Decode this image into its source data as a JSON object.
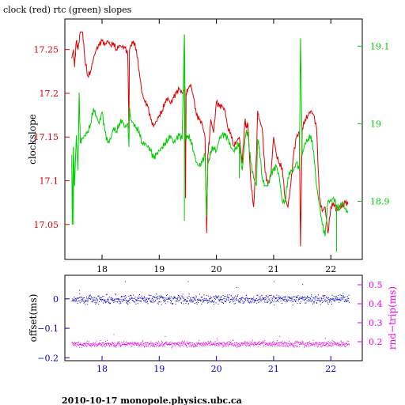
{
  "title": "clock (red) rtc (green) slopes",
  "footer": "2010-10-17  monopole.physics.ubc.ca",
  "colors": {
    "clock": "#dd0000",
    "rtc": "#00cc00",
    "offset": "#0000cc",
    "rndtrip": "#ee00ee",
    "frame": "#000000"
  },
  "chart_data": [
    {
      "type": "line",
      "title": "clock (red) rtc (green) slopes",
      "ylabel": "clockslope",
      "y2label": "",
      "xlim": [
        17.35,
        22.55
      ],
      "ylim": [
        17.01,
        17.285
      ],
      "y2lim": [
        18.825,
        19.135
      ],
      "x_ticks": [
        18,
        19,
        20,
        21,
        22
      ],
      "x_tick_labels": [
        "18",
        "19",
        "20",
        "21",
        "22"
      ],
      "y_ticks": [
        17.05,
        17.1,
        17.15,
        17.2,
        17.25
      ],
      "y_tick_labels": [
        "17.05",
        "17.1",
        "17.15",
        "17.2",
        "17.25"
      ],
      "y2_ticks": [
        18.9,
        19.0,
        19.1
      ],
      "y2_tick_labels": [
        "18.9",
        "19",
        "19.1"
      ],
      "series": [
        {
          "axis": "left",
          "x": [
            17.47,
            17.5,
            17.52,
            17.55,
            17.58,
            17.62,
            17.66,
            17.7,
            17.75,
            17.8,
            17.85,
            17.9,
            17.95,
            18.0,
            18.05,
            18.1,
            18.15,
            18.2,
            18.25,
            18.3,
            18.35,
            18.4,
            18.45,
            18.47,
            18.48,
            18.5,
            18.55,
            18.6,
            18.65,
            18.7,
            18.75,
            18.8,
            18.85,
            18.9,
            18.95,
            19.0,
            19.05,
            19.1,
            19.15,
            19.2,
            19.25,
            19.3,
            19.35,
            19.4,
            19.45,
            19.46,
            19.47,
            19.5,
            19.55,
            19.6,
            19.65,
            19.7,
            19.75,
            19.8,
            19.83,
            19.85,
            19.88,
            19.9,
            19.95,
            20.0,
            20.05,
            20.1,
            20.15,
            20.2,
            20.25,
            20.3,
            20.35,
            20.4,
            20.45,
            20.5,
            20.52,
            20.55,
            20.6,
            20.65,
            20.7,
            20.72,
            20.75,
            20.8,
            20.85,
            20.9,
            20.95,
            21.0,
            21.05,
            21.1,
            21.15,
            21.2,
            21.25,
            21.3,
            21.35,
            21.4,
            21.45,
            21.47,
            21.5,
            21.55,
            21.6,
            21.65,
            21.7,
            21.75,
            21.8,
            21.85,
            21.9,
            21.95,
            22.0,
            22.05,
            22.1,
            22.15,
            22.2,
            22.25,
            22.3
          ],
          "y": [
            17.24,
            17.25,
            17.23,
            17.26,
            17.25,
            17.27,
            17.27,
            17.24,
            17.22,
            17.225,
            17.24,
            17.25,
            17.255,
            17.26,
            17.255,
            17.26,
            17.255,
            17.258,
            17.25,
            17.255,
            17.253,
            17.252,
            17.245,
            17.16,
            17.25,
            17.255,
            17.26,
            17.25,
            17.225,
            17.2,
            17.19,
            17.185,
            17.17,
            17.162,
            17.168,
            17.175,
            17.18,
            17.19,
            17.195,
            17.188,
            17.195,
            17.2,
            17.205,
            17.2,
            17.205,
            17.08,
            17.2,
            17.205,
            17.21,
            17.195,
            17.175,
            17.17,
            17.165,
            17.15,
            17.04,
            17.13,
            17.15,
            17.17,
            17.155,
            17.19,
            17.185,
            17.185,
            17.18,
            17.16,
            17.155,
            17.14,
            17.145,
            17.15,
            17.12,
            17.17,
            17.16,
            17.165,
            17.1,
            17.07,
            17.13,
            17.18,
            17.17,
            17.16,
            17.11,
            17.095,
            17.105,
            17.15,
            17.13,
            17.12,
            17.115,
            17.08,
            17.07,
            17.095,
            17.13,
            17.15,
            17.155,
            17.025,
            17.16,
            17.17,
            17.175,
            17.18,
            17.175,
            17.16,
            17.08,
            17.065,
            17.07,
            17.04,
            17.07,
            17.075,
            17.065,
            17.07,
            17.07,
            17.075,
            17.073
          ]
        },
        {
          "axis": "right",
          "x": [
            17.47,
            17.48,
            17.5,
            17.52,
            17.55,
            17.58,
            17.6,
            17.62,
            17.65,
            17.7,
            17.75,
            17.8,
            17.85,
            17.9,
            17.95,
            18.0,
            18.05,
            18.1,
            18.15,
            18.2,
            18.25,
            18.3,
            18.35,
            18.4,
            18.45,
            18.47,
            18.48,
            18.5,
            18.55,
            18.6,
            18.65,
            18.7,
            18.75,
            18.8,
            18.85,
            18.9,
            18.95,
            19.0,
            19.05,
            19.1,
            19.15,
            19.2,
            19.25,
            19.3,
            19.35,
            19.4,
            19.44,
            19.46,
            19.5,
            19.55,
            19.6,
            19.65,
            19.7,
            19.75,
            19.8,
            19.83,
            19.85,
            19.88,
            19.9,
            19.95,
            20.0,
            20.05,
            20.1,
            20.15,
            20.2,
            20.25,
            20.3,
            20.35,
            20.4,
            20.45,
            20.5,
            20.52,
            20.55,
            20.6,
            20.65,
            20.7,
            20.72,
            20.75,
            20.8,
            20.85,
            20.9,
            20.95,
            21.0,
            21.05,
            21.1,
            21.15,
            21.2,
            21.25,
            21.3,
            21.35,
            21.4,
            21.45,
            21.47,
            21.5,
            21.55,
            21.6,
            21.65,
            21.7,
            21.75,
            21.8,
            21.85,
            21.9,
            21.95,
            22.0,
            22.05,
            22.1,
            22.15,
            22.2,
            22.25,
            22.3
          ],
          "y": [
            18.96,
            18.87,
            18.97,
            18.92,
            18.985,
            18.94,
            19.04,
            18.975,
            18.98,
            18.985,
            18.99,
            19.0,
            19.02,
            19.01,
            19.0,
            19.015,
            18.99,
            18.975,
            18.98,
            18.995,
            18.99,
            19.0,
            19.005,
            18.995,
            19.0,
            18.97,
            19.02,
            19.005,
            19.0,
            18.995,
            18.99,
            18.975,
            18.975,
            18.97,
            18.965,
            18.955,
            18.96,
            18.965,
            18.97,
            18.975,
            18.98,
            18.985,
            18.975,
            18.98,
            18.985,
            18.98,
            19.115,
            18.98,
            18.985,
            18.98,
            18.965,
            18.95,
            18.945,
            18.95,
            18.96,
            18.88,
            18.95,
            18.955,
            18.965,
            18.97,
            18.965,
            18.98,
            18.985,
            18.985,
            18.98,
            18.97,
            18.965,
            18.97,
            18.975,
            18.94,
            18.98,
            18.99,
            18.985,
            18.95,
            18.93,
            18.92,
            18.98,
            18.97,
            18.93,
            18.92,
            18.92,
            18.935,
            18.94,
            18.945,
            18.93,
            18.9,
            18.9,
            18.93,
            18.94,
            18.94,
            18.95,
            18.94,
            19.11,
            18.96,
            18.975,
            18.98,
            18.985,
            18.965,
            18.92,
            18.895,
            18.87,
            18.855,
            18.9,
            18.9,
            18.905,
            18.895,
            18.89,
            18.9,
            18.89,
            18.885
          ]
        }
      ],
      "dropouts": [
        {
          "axis": "right",
          "x": 17.5,
          "y": 18.87
        },
        {
          "axis": "right",
          "x": 19.44,
          "y": 18.875
        },
        {
          "axis": "right",
          "x": 20.4,
          "y": 18.93
        },
        {
          "axis": "left",
          "x": 21.47,
          "y": 17.025
        },
        {
          "axis": "right",
          "x": 22.1,
          "y": 18.835
        }
      ]
    },
    {
      "type": "scatter",
      "ylabel": "offset(ms)",
      "y2label": "rnd−trip(ms)",
      "xlim": [
        17.35,
        22.55
      ],
      "ylim": [
        -0.21,
        0.08
      ],
      "y2lim": [
        0.1,
        0.55
      ],
      "x_ticks": [
        18,
        19,
        20,
        21,
        22
      ],
      "x_tick_labels": [
        "18",
        "19",
        "20",
        "21",
        "22"
      ],
      "y_ticks": [
        0,
        -0.1,
        -0.2
      ],
      "y_tick_labels": [
        "0",
        "−0.1",
        "−0.2"
      ],
      "y2_ticks": [
        0.2,
        0.3,
        0.4,
        0.5
      ],
      "y2_tick_labels": [
        "0.2",
        "0.3",
        "0.4",
        "0.5"
      ],
      "series": [
        {
          "axis": "left",
          "x_range": [
            17.47,
            22.32
          ],
          "level": 0.0,
          "spread": 0.015,
          "outliers": [
            [
              17.6,
              0.03
            ],
            [
              18.4,
              0.06
            ],
            [
              19.5,
              0.06
            ],
            [
              20.35,
              0.04
            ],
            [
              21.0,
              0.06
            ],
            [
              21.5,
              0.05
            ]
          ]
        },
        {
          "axis": "right",
          "x_range": [
            17.47,
            22.32
          ],
          "level": 0.19,
          "spread": 0.015,
          "outliers": [
            [
              18.2,
              0.24
            ],
            [
              19.1,
              0.23
            ],
            [
              20.0,
              0.22
            ],
            [
              21.1,
              0.23
            ],
            [
              21.9,
              0.22
            ]
          ]
        }
      ]
    }
  ]
}
